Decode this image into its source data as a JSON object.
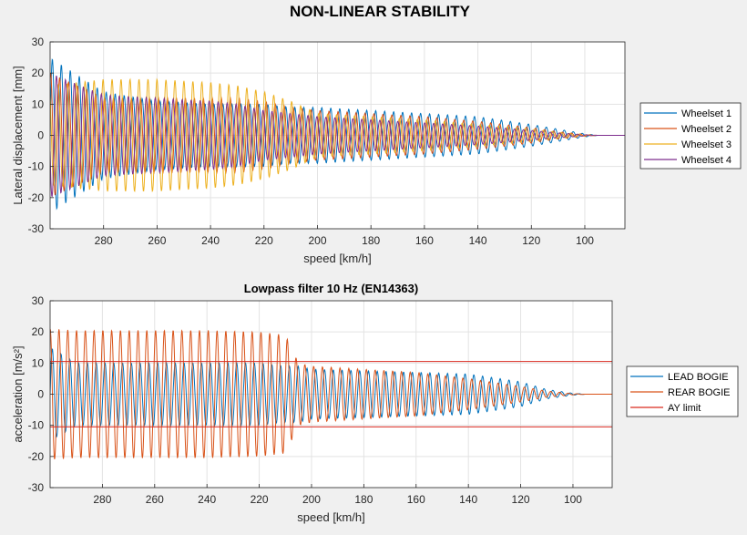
{
  "figure_title": "NON-LINEAR STABILITY",
  "chart_data": [
    {
      "type": "line",
      "title": "",
      "xlabel": "speed [km/h]",
      "ylabel": "Lateral displacement [mm]",
      "xlim": [
        300,
        85
      ],
      "x_reversed": true,
      "ylim": [
        -30,
        30
      ],
      "xticks": [
        280,
        260,
        240,
        220,
        200,
        180,
        160,
        140,
        120,
        100
      ],
      "yticks": [
        30,
        20,
        10,
        0,
        -10,
        -20,
        -30
      ],
      "grid": true,
      "legend_position": "right",
      "envelope_x": [
        300,
        280,
        260,
        240,
        230,
        220,
        210,
        200,
        180,
        160,
        140,
        120,
        110,
        100,
        95
      ],
      "series": [
        {
          "name": "Wheelset 1",
          "color": "#0072bd",
          "envelope": [
            25,
            14,
            11,
            10,
            10,
            10,
            9,
            9,
            8,
            7,
            6,
            3.5,
            2,
            0.5,
            0
          ],
          "cycles": 64,
          "phase": 0.0
        },
        {
          "name": "Wheelset 2",
          "color": "#d95319",
          "envelope": [
            20,
            12,
            12,
            12,
            12,
            11,
            9,
            8,
            7,
            6,
            4.5,
            2.5,
            1.2,
            0.3,
            0
          ],
          "cycles": 64,
          "phase": 1.2
        },
        {
          "name": "Wheelset 3",
          "color": "#edb120",
          "envelope": [
            16,
            18,
            18,
            17,
            16,
            14,
            11,
            7,
            6,
            5,
            3.5,
            2,
            1,
            0.2,
            0
          ],
          "cycles": 64,
          "phase": 2.2
        },
        {
          "name": "Wheelset 4",
          "color": "#7e2f8e",
          "envelope": [
            20,
            13,
            12,
            11,
            10,
            8,
            7,
            6,
            5,
            4,
            3,
            1.6,
            0.8,
            0.2,
            0
          ],
          "cycles": 64,
          "phase": 3.4
        }
      ]
    },
    {
      "type": "line",
      "title": "Lowpass filter 10 Hz (EN14363)",
      "xlabel": "speed [km/h]",
      "ylabel": "acceleration  [m/s²]",
      "xlim": [
        300,
        85
      ],
      "x_reversed": true,
      "ylim": [
        -30,
        30
      ],
      "xticks": [
        280,
        260,
        240,
        220,
        200,
        180,
        160,
        140,
        120,
        100
      ],
      "yticks": [
        30,
        20,
        10,
        0,
        -10,
        -20,
        -30
      ],
      "grid": true,
      "legend_position": "right",
      "envelope_x": [
        300,
        290,
        280,
        260,
        240,
        220,
        210,
        205,
        200,
        180,
        160,
        140,
        120,
        110,
        100,
        95
      ],
      "series": [
        {
          "name": "LEAD BOGIE",
          "color": "#0072bd",
          "envelope": [
            15,
            10,
            10,
            10,
            10,
            10,
            9,
            9,
            8,
            7.5,
            7,
            6.5,
            4,
            1.5,
            0.3,
            0
          ],
          "cycles": 64,
          "phase": 0.0
        },
        {
          "name": "REAR BOGIE",
          "color": "#d95319",
          "envelope": [
            21,
            20.5,
            20.5,
            20.5,
            20.5,
            20,
            19,
            10,
            9,
            8,
            7,
            5,
            2.5,
            1,
            0.2,
            0
          ],
          "cycles": 64,
          "phase": 1.5
        },
        {
          "name": "AY limit",
          "color": "#d92a1f",
          "values_pos": 10.5,
          "values_neg": -10.5
        }
      ]
    }
  ]
}
